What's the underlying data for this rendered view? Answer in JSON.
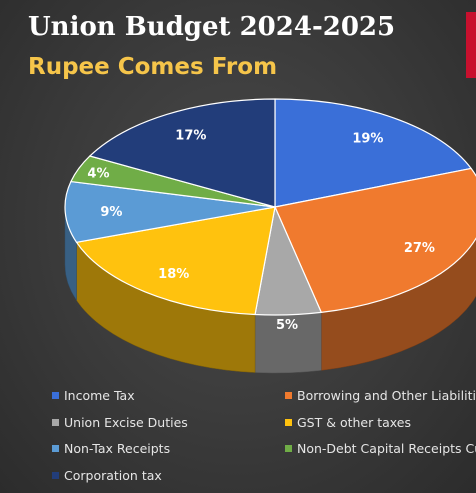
{
  "chart_data": {
    "type": "pie",
    "title": "Union Budget 2024-2025",
    "subtitle": "Rupee Comes From",
    "slices": [
      {
        "name": "Income Tax",
        "value": 19,
        "label": "19%",
        "color": "#3a6fd8"
      },
      {
        "name": "Borrowing and Other Liabilities",
        "value": 27,
        "label": "27%",
        "color": "#f07a2e"
      },
      {
        "name": "Union Excise Duties",
        "value": 5,
        "label": "5%",
        "color": "#a8a8a8"
      },
      {
        "name": "GST & other taxes",
        "value": 18,
        "label": "18%",
        "color": "#ffc20e"
      },
      {
        "name": "Non-Tax Receipts",
        "value": 9,
        "label": "9%",
        "color": "#5b9bd5"
      },
      {
        "name": "Non-Debt Capital Receipts Cust",
        "value": 4,
        "label": "4%",
        "color": "#70ad47"
      },
      {
        "name": "Corporation tax",
        "value": 17,
        "label": "17%",
        "color": "#223d7a"
      }
    ],
    "legend_position": "bottom"
  },
  "colors": {
    "title": "#ffffff",
    "subtitle": "#f6c54a",
    "accent": "#c8102e"
  }
}
